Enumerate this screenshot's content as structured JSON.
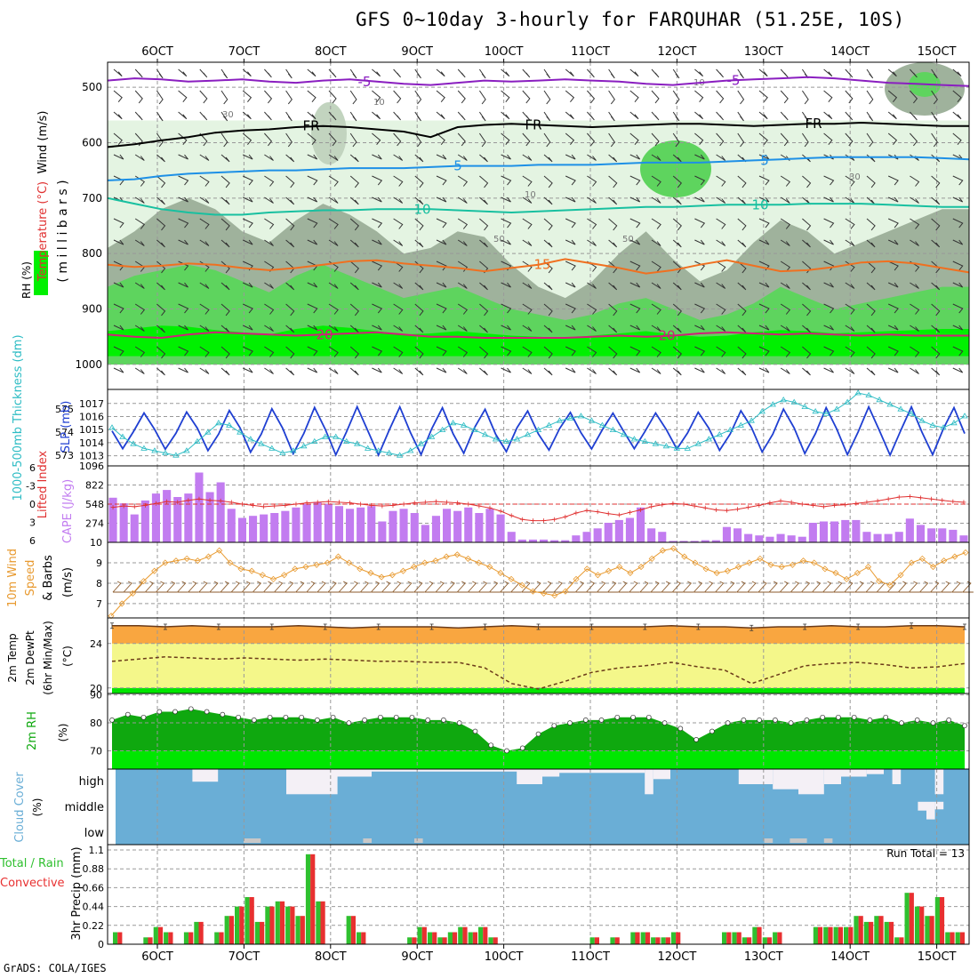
{
  "header": {
    "title": "GFS 0~10day 3-hourly for FARQUHAR (51.25E, 10S)",
    "credit": "GrADS: COLA/IGES"
  },
  "colors": {
    "rh_light": "#e4f4e2",
    "rh_mid": "#c2d4bf",
    "rh_grey": "#9fb29c",
    "rh_green": "#5ed45e",
    "rh_bright": "#00f000",
    "slp": "#1f3fd2",
    "thickness": "#2dbcc4",
    "lifted_index": "#e03030",
    "cape": "#c27cf0",
    "wind_speed": "#e89a30",
    "barbs": "#8b5a2b",
    "temp_fill": "#f9a640",
    "dewpt_fill": "#f4f78a",
    "rh2m_dark": "#0fa80f",
    "rh2m_light": "#00e600",
    "cloud": "#6aaed6",
    "cloud_clear": "#f4f0f6",
    "precip_total": "#2fc02f",
    "precip_conv": "#e83030",
    "temp_5": "#8a1ec0",
    "temp_fr": "#000000",
    "temp_m5": "#1e90e6",
    "temp_10": "#18c0a0",
    "temp_15": "#f07020",
    "temp_20": "#d0207a"
  },
  "chart_data": [
    {
      "type": "heatmap",
      "id": "vertical",
      "ylabel_parts": [
        "RH (%)",
        "Temperature (°C)",
        "Wind (m/s)"
      ],
      "ylabel2": "( m i l l i b a r s )",
      "x_tick_labels": [
        "6OCT",
        "7OCT",
        "8OCT",
        "9OCT",
        "10OCT",
        "11OCT",
        "12OCT",
        "13OCT",
        "14OCT",
        "15OCT"
      ],
      "y_ticks": [
        500,
        600,
        700,
        800,
        900,
        1000
      ],
      "ylim": [
        1045,
        455
      ],
      "contour_labels": {
        "m5": "-5",
        "fr": "FR",
        "p5": "5",
        "p10": "10",
        "p15": "15",
        "p20": "20",
        "r10": "10",
        "r30": "30",
        "r50": "50"
      },
      "isotherms": [
        {
          "key": "m5",
          "level": [
            488,
            484,
            486,
            490,
            488,
            486,
            490,
            492,
            488,
            486,
            490,
            494,
            496,
            492,
            488,
            490,
            488,
            486,
            488,
            490,
            494,
            496,
            492,
            488,
            486,
            484,
            482,
            484,
            488,
            492,
            494,
            496,
            498
          ]
        },
        {
          "key": "fr",
          "level": [
            608,
            603,
            596,
            590,
            582,
            578,
            576,
            572,
            570,
            572,
            576,
            580,
            590,
            572,
            568,
            566,
            568,
            570,
            572,
            570,
            568,
            566,
            566,
            568,
            570,
            568,
            566,
            566,
            564,
            566,
            568,
            570,
            570
          ]
        },
        {
          "key": "p5",
          "level": [
            668,
            666,
            660,
            656,
            654,
            652,
            650,
            650,
            648,
            646,
            646,
            646,
            644,
            642,
            642,
            642,
            640,
            640,
            640,
            638,
            636,
            636,
            636,
            634,
            632,
            630,
            628,
            626,
            626,
            626,
            626,
            628,
            630
          ]
        },
        {
          "key": "p10",
          "level": [
            700,
            710,
            720,
            726,
            730,
            730,
            726,
            724,
            722,
            722,
            720,
            720,
            720,
            722,
            724,
            726,
            724,
            722,
            720,
            718,
            716,
            716,
            714,
            712,
            712,
            712,
            710,
            710,
            710,
            712,
            714,
            716,
            716
          ]
        },
        {
          "key": "p15",
          "level": [
            820,
            824,
            822,
            818,
            820,
            826,
            830,
            826,
            820,
            814,
            812,
            818,
            822,
            826,
            832,
            826,
            820,
            810,
            818,
            826,
            836,
            830,
            820,
            812,
            822,
            832,
            830,
            824,
            816,
            814,
            818,
            826,
            834
          ]
        },
        {
          "key": "p20",
          "level": [
            946,
            950,
            952,
            946,
            942,
            944,
            946,
            948,
            946,
            944,
            942,
            946,
            950,
            950,
            952,
            952,
            952,
            952,
            950,
            948,
            950,
            948,
            944,
            942,
            944,
            946,
            944,
            946,
            948,
            946,
            948,
            948,
            948
          ]
        }
      ],
      "rh_moist_top": [
        790,
        760,
        720,
        700,
        720,
        760,
        780,
        740,
        710,
        730,
        760,
        800,
        790,
        760,
        770,
        820,
        860,
        880,
        850,
        800,
        760,
        810,
        850,
        830,
        780,
        740,
        760,
        800,
        780,
        760,
        740,
        720,
        720
      ],
      "rh_green_top": [
        860,
        840,
        830,
        820,
        830,
        850,
        870,
        840,
        820,
        840,
        860,
        880,
        870,
        860,
        880,
        900,
        910,
        920,
        910,
        890,
        880,
        900,
        920,
        910,
        890,
        860,
        880,
        900,
        890,
        880,
        870,
        860,
        860
      ],
      "rh_bright_top": [
        940,
        935,
        930,
        932,
        938,
        942,
        946,
        936,
        930,
        934,
        940,
        946,
        944,
        940,
        944,
        948,
        950,
        952,
        948,
        944,
        940,
        946,
        950,
        948,
        942,
        938,
        940,
        944,
        942,
        940,
        938,
        936,
        936
      ]
    },
    {
      "type": "line",
      "id": "slp_thickness",
      "ylabel_left": "1000-500mb Thickness (dm)",
      "ylabel_right": "SLP (mb)",
      "left_ticks": [
        573,
        574,
        575
      ],
      "right_ticks": [
        1013,
        1014,
        1015,
        1016,
        1017
      ],
      "right_bottom_label": "1096",
      "left_range": [
        572.7,
        575.7
      ],
      "right_range": [
        1012.5,
        1017.8
      ],
      "x_hours": [
        0,
        3,
        6,
        9,
        12,
        15,
        18,
        21,
        24,
        27,
        30,
        33,
        36,
        39,
        42,
        45,
        48,
        51,
        54,
        57,
        60,
        63,
        66,
        69,
        72,
        75,
        78,
        81,
        84,
        87,
        90,
        93,
        96,
        99,
        102,
        105,
        108,
        111,
        114,
        117,
        120,
        123,
        126,
        129,
        132,
        135,
        138,
        141,
        144,
        147,
        150,
        153,
        156,
        159,
        162,
        165,
        168,
        171,
        174,
        177,
        180,
        183,
        186,
        189,
        192,
        195,
        198,
        201,
        204,
        207,
        210,
        213,
        216,
        219,
        222,
        225,
        228,
        231,
        234,
        237,
        240
      ],
      "slp_phase_mb": {
        "max": 1016.5,
        "min": 1013.3,
        "period_h": 12,
        "first_max_h": 9
      },
      "thickness_points_dm": [
        574.2,
        573.8,
        573.5,
        573.3,
        573.2,
        573.1,
        573.0,
        573.2,
        573.6,
        574.0,
        574.4,
        574.3,
        574.0,
        573.7,
        573.5,
        573.3,
        573.1,
        573.2,
        573.4,
        573.6,
        573.8,
        573.8,
        573.6,
        573.5,
        573.3,
        573.2,
        573.1,
        573.0,
        573.2,
        573.5,
        573.8,
        574.1,
        574.4,
        574.3,
        574.1,
        573.9,
        573.7,
        573.6,
        573.7,
        573.9,
        574.1,
        574.3,
        574.5,
        574.6,
        574.7,
        574.5,
        574.3,
        574.1,
        573.9,
        573.7,
        573.6,
        573.5,
        573.4,
        573.3,
        573.3,
        573.5,
        573.7,
        573.9,
        574.1,
        574.3,
        574.5,
        574.9,
        575.2,
        575.4,
        575.3,
        575.1,
        574.9,
        574.8,
        575.0,
        575.3,
        575.7,
        575.6,
        575.4,
        575.2,
        575.0,
        574.8,
        574.5,
        574.3,
        574.2,
        574.4,
        574.7
      ]
    },
    {
      "type": "bar",
      "id": "cape_li",
      "ylabel_left": "Lifted Index",
      "ylabel_right": "CAPE (J/kg)",
      "li_ticks": [
        "6",
        "-3",
        "0",
        "3",
        "6"
      ],
      "cape_ticks": [
        822,
        548,
        274
      ],
      "cape_max": 1096,
      "cape_values": [
        640,
        560,
        400,
        600,
        700,
        750,
        650,
        700,
        1000,
        720,
        860,
        480,
        350,
        380,
        400,
        420,
        450,
        500,
        550,
        580,
        550,
        520,
        480,
        500,
        520,
        300,
        450,
        480,
        420,
        250,
        380,
        480,
        450,
        500,
        420,
        480,
        400,
        150,
        40,
        40,
        40,
        30,
        30,
        100,
        150,
        200,
        280,
        320,
        350,
        500,
        200,
        150,
        20,
        20,
        20,
        30,
        30,
        220,
        200,
        120,
        100,
        80,
        120,
        100,
        80,
        280,
        300,
        300,
        320,
        320,
        150,
        120,
        120,
        150,
        340,
        250,
        200,
        200,
        180,
        100
      ],
      "li_values": [
        0.5,
        0.3,
        0.4,
        0.2,
        -0.1,
        -0.4,
        -0.3,
        -0.6,
        -0.8,
        -0.6,
        -0.5,
        -0.3,
        0.0,
        0.2,
        0.4,
        0.3,
        0.2,
        0.0,
        -0.2,
        -0.3,
        -0.4,
        -0.3,
        -0.2,
        0.0,
        0.2,
        0.3,
        0.2,
        0.0,
        -0.2,
        -0.3,
        -0.4,
        -0.3,
        -0.2,
        0.0,
        0.3,
        0.6,
        1.1,
        1.8,
        2.4,
        2.6,
        2.6,
        2.4,
        2.0,
        1.4,
        1.0,
        1.2,
        1.5,
        1.7,
        1.3,
        0.9,
        0.4,
        0.1,
        -0.1,
        0.0,
        0.3,
        0.6,
        0.9,
        1.0,
        0.8,
        0.5,
        0.2,
        -0.2,
        -0.5,
        -0.3,
        0.0,
        0.2,
        0.4,
        0.2,
        0.1,
        -0.1,
        -0.3,
        -0.5,
        -0.8,
        -1.1,
        -1.2,
        -1.0,
        -0.8,
        -0.6,
        -0.4,
        -0.3
      ]
    },
    {
      "type": "line",
      "id": "wind10m",
      "ylabel": [
        "10m Wind",
        "Speed",
        "& Barbs",
        "(m/s)"
      ],
      "y_ticks": [
        7,
        8,
        9,
        10
      ],
      "ylim": [
        6.3,
        10.0
      ],
      "speed_values": [
        6.4,
        7.0,
        7.5,
        8.1,
        8.6,
        9.0,
        9.1,
        9.2,
        9.1,
        9.3,
        9.6,
        9.0,
        8.7,
        8.6,
        8.4,
        8.2,
        8.4,
        8.7,
        8.8,
        8.9,
        9.0,
        9.3,
        9.0,
        8.7,
        8.5,
        8.3,
        8.4,
        8.6,
        8.8,
        9.0,
        9.1,
        9.3,
        9.4,
        9.2,
        9.0,
        8.8,
        8.5,
        8.2,
        7.9,
        7.6,
        7.5,
        7.4,
        7.6,
        8.2,
        8.7,
        8.4,
        8.6,
        8.8,
        8.5,
        8.8,
        9.2,
        9.6,
        9.7,
        9.3,
        9.0,
        8.7,
        8.5,
        8.6,
        8.8,
        9.0,
        9.2,
        8.9,
        8.8,
        8.9,
        9.1,
        9.0,
        8.7,
        8.5,
        8.2,
        8.5,
        8.8,
        8.1,
        7.9,
        8.4,
        9.0,
        9.2,
        8.8,
        9.1,
        9.3,
        9.5
      ]
    },
    {
      "type": "area",
      "id": "temp2m",
      "ylabel": [
        "2m Temp",
        "2m DewPt",
        "(6hr Min/Max)",
        "(°C)"
      ],
      "y_ticks": [
        20,
        24
      ],
      "ylim": [
        19.5,
        26.3
      ],
      "temp_values": [
        25.6,
        25.6,
        25.5,
        25.6,
        25.5,
        25.5,
        25.5,
        25.6,
        25.5,
        25.4,
        25.5,
        25.5,
        25.5,
        25.4,
        25.5,
        25.6,
        25.5,
        25.5,
        25.5,
        25.5,
        25.5,
        25.6,
        25.5,
        25.5,
        25.4,
        25.5,
        25.5,
        25.6,
        25.5,
        25.5,
        25.6,
        25.6,
        25.5
      ],
      "dewpt_values": [
        22.4,
        22.6,
        22.8,
        22.7,
        22.6,
        22.7,
        22.6,
        22.5,
        22.6,
        22.5,
        22.4,
        22.4,
        22.3,
        22.3,
        21.8,
        20.4,
        19.9,
        20.6,
        21.4,
        21.8,
        22.0,
        22.3,
        21.9,
        21.6,
        20.4,
        21.2,
        22.0,
        22.2,
        22.3,
        22.1,
        21.8,
        21.9,
        22.2
      ]
    },
    {
      "type": "area",
      "id": "rh2m",
      "ylabel": [
        "2m RH",
        "(%)"
      ],
      "y_ticks": [
        70,
        80,
        90
      ],
      "ylim": [
        63.5,
        90.5
      ],
      "rh_values": [
        81,
        83,
        82,
        84,
        84,
        85,
        84,
        83,
        82,
        81,
        82,
        82,
        82,
        81,
        82,
        80,
        81,
        82,
        82,
        82,
        81,
        81,
        80,
        77,
        72,
        70,
        71,
        76,
        79,
        80,
        81,
        81,
        82,
        82,
        82,
        80,
        78,
        74,
        77,
        80,
        81,
        81,
        81,
        80,
        81,
        82,
        82,
        82,
        81,
        82,
        80,
        81,
        80,
        81,
        79
      ]
    },
    {
      "type": "heatmap",
      "id": "clouds",
      "ylabel": [
        "Cloud Cover",
        "(%)"
      ],
      "levels": [
        "high",
        "middle",
        "low"
      ],
      "clear_high": [
        [
          0.09,
          0.12,
          0.5
        ],
        [
          0.2,
          0.26,
          1.0
        ],
        [
          0.25,
          0.3,
          0.3
        ],
        [
          0.3,
          0.5,
          0.1
        ],
        [
          0.47,
          0.5,
          0.6
        ],
        [
          0.49,
          0.52,
          0.3
        ],
        [
          0.51,
          0.62,
          0.15
        ],
        [
          0.62,
          0.63,
          1.0
        ],
        [
          0.63,
          0.65,
          0.4
        ],
        [
          0.73,
          0.77,
          0.6
        ],
        [
          0.77,
          0.8,
          0.8
        ],
        [
          0.8,
          0.83,
          1.0
        ],
        [
          0.83,
          0.85,
          0.6
        ],
        [
          0.85,
          0.88,
          0.3
        ],
        [
          0.88,
          0.9,
          0.2
        ],
        [
          0.91,
          0.92,
          0.6
        ],
        [
          0.96,
          0.97,
          1.0
        ]
      ],
      "clear_middle": [
        [
          0.94,
          0.95,
          0.35
        ],
        [
          0.95,
          0.96,
          0.7
        ],
        [
          0.96,
          0.97,
          0.3
        ]
      ],
      "clear_low": [
        [
          0.15,
          0.17,
          0.4
        ],
        [
          0.29,
          0.3,
          0.4
        ],
        [
          0.35,
          0.36,
          0.7
        ],
        [
          0.76,
          0.77,
          0.3
        ],
        [
          0.79,
          0.8,
          0.3
        ],
        [
          0.8,
          0.81,
          0.3
        ],
        [
          0.83,
          0.84,
          0.3
        ]
      ]
    },
    {
      "type": "bar",
      "id": "precip",
      "ylabel": "3hr Precip (mm)",
      "ylabel_left": [
        "Total / Rain",
        "Convective"
      ],
      "y_ticks": [
        0,
        0.22,
        0.44,
        0.66,
        0.88,
        1.1
      ],
      "ylim": [
        0,
        1.1
      ],
      "run_total_label": "Run Total = 13",
      "values": [
        0.14,
        0,
        0,
        0.08,
        0.2,
        0.14,
        0,
        0.14,
        0.26,
        0,
        0.14,
        0.33,
        0.44,
        0.55,
        0.26,
        0.44,
        0.5,
        0.44,
        0.33,
        1.05,
        0.5,
        0,
        0,
        0.33,
        0.14,
        0,
        0,
        0,
        0,
        0.08,
        0.2,
        0.14,
        0.08,
        0.14,
        0.2,
        0.14,
        0.2,
        0.08,
        0,
        0,
        0,
        0,
        0,
        0,
        0,
        0,
        0,
        0.08,
        0,
        0.08,
        0,
        0.14,
        0.14,
        0.08,
        0.08,
        0.14,
        0,
        0,
        0,
        0,
        0.14,
        0.14,
        0.08,
        0.2,
        0.08,
        0.14,
        0,
        0,
        0,
        0.2,
        0.2,
        0.2,
        0.2,
        0.33,
        0.26,
        0.33,
        0.26,
        0.08,
        0.6,
        0.44,
        0.33,
        0.55,
        0.14,
        0.14
      ]
    }
  ]
}
